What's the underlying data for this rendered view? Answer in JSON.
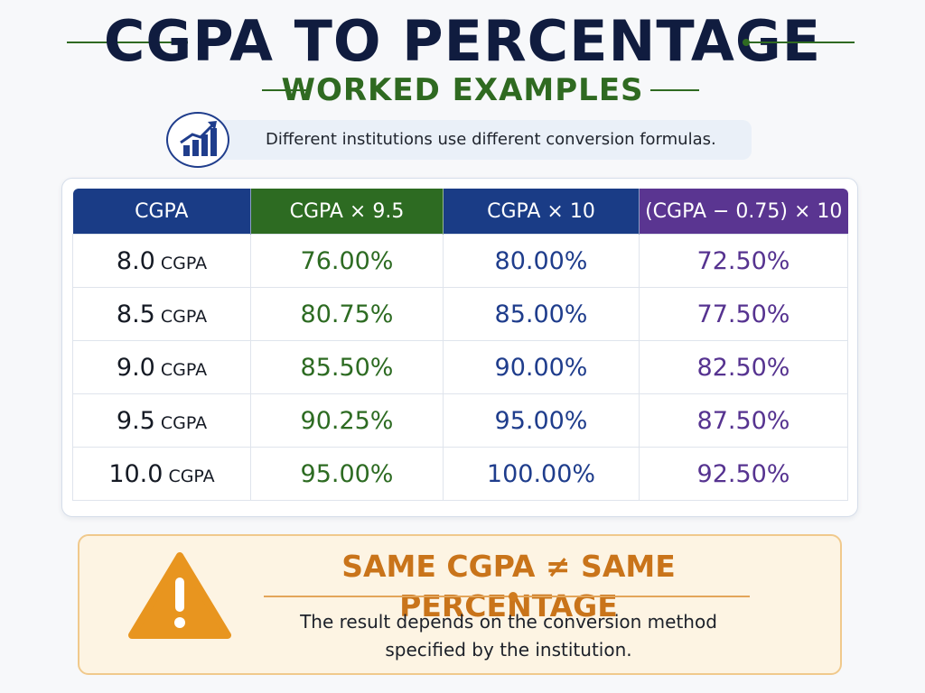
{
  "header": {
    "title": "CGPA TO PERCENTAGE",
    "subtitle": "WORKED EXAMPLES"
  },
  "note": {
    "text": "Different institutions use different conversion formulas.",
    "icon": "bar-chart-growth-icon"
  },
  "table": {
    "columns": [
      "CGPA",
      "CGPA × 9.5",
      "CGPA × 10",
      "(CGPA − 0.75) × 10"
    ],
    "rows": [
      {
        "cgpa": "8.0",
        "unit": "CGPA",
        "v1": "76.00%",
        "v2": "80.00%",
        "v3": "72.50%"
      },
      {
        "cgpa": "8.5",
        "unit": "CGPA",
        "v1": "80.75%",
        "v2": "85.00%",
        "v3": "77.50%"
      },
      {
        "cgpa": "9.0",
        "unit": "CGPA",
        "v1": "85.50%",
        "v2": "90.00%",
        "v3": "82.50%"
      },
      {
        "cgpa": "9.5",
        "unit": "CGPA",
        "v1": "90.25%",
        "v2": "95.00%",
        "v3": "87.50%"
      },
      {
        "cgpa": "10.0",
        "unit": "CGPA",
        "v1": "95.00%",
        "v2": "100.00%",
        "v3": "92.50%"
      }
    ]
  },
  "warning": {
    "title": "SAME CGPA ≠ SAME PERCENTAGE",
    "line1": "The result depends on the conversion method",
    "line2": "specified by the institution.",
    "icon": "warning-triangle-icon"
  },
  "colors": {
    "navy": "#1a3c86",
    "green": "#2d6b22",
    "purple": "#5a3591",
    "orange": "#e8951f"
  }
}
